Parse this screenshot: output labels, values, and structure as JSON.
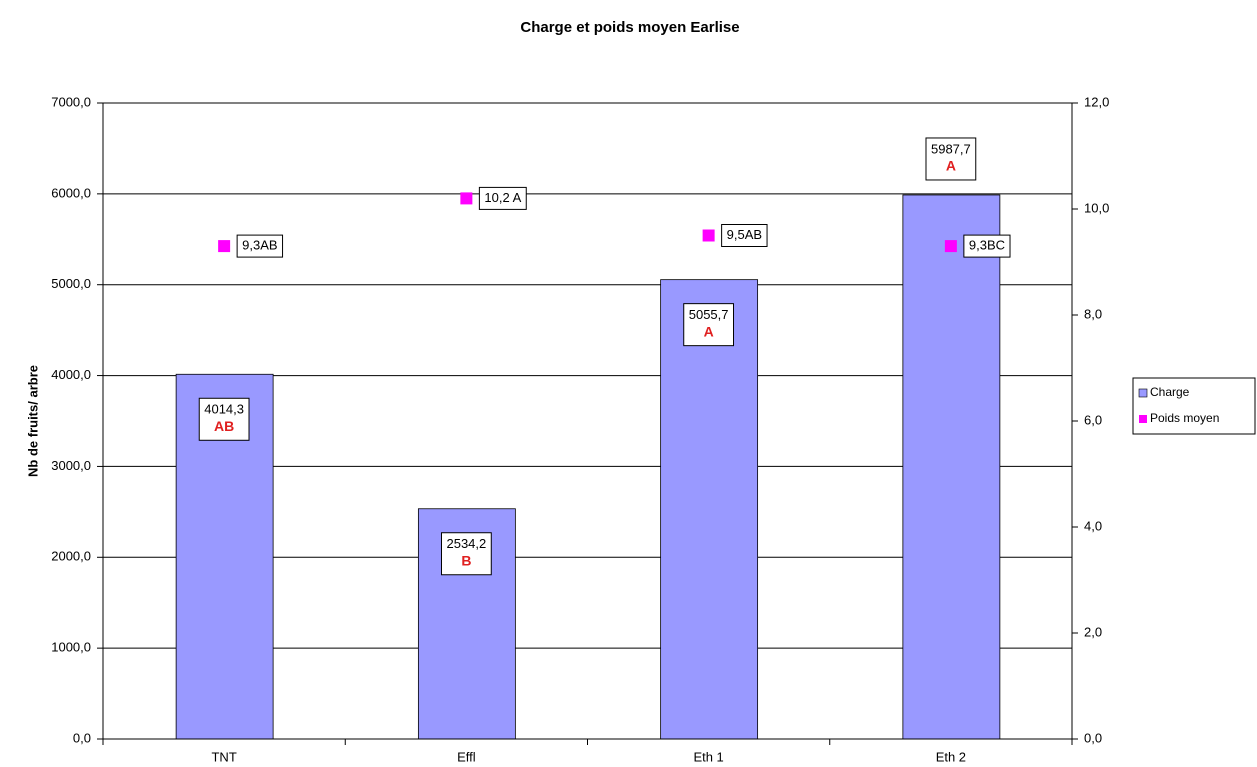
{
  "chart_data": {
    "type": "bar",
    "title": "Charge et poids moyen Earlise",
    "y_label": "Nb de fruits/ arbre",
    "categories": [
      "TNT",
      "Effl",
      "Eth 1",
      "Eth 2"
    ],
    "series": [
      {
        "name": "Charge",
        "type": "bar",
        "color": "#9999ff",
        "values": [
          4014.3,
          2534.2,
          5055.7,
          5987.7
        ],
        "value_labels": [
          "4014,3",
          "2534,2",
          "5055,7",
          "5987,7"
        ],
        "letters": [
          "AB",
          "B",
          "A",
          "A"
        ]
      },
      {
        "name": "Poids moyen",
        "type": "scatter",
        "axis": "y2",
        "color": "#ff00ff",
        "values": [
          9.3,
          10.2,
          9.5,
          9.3
        ],
        "value_labels": [
          "9,3AB",
          "10,2 A",
          "9,5AB",
          "9,3BC"
        ]
      }
    ],
    "ylim": [
      0,
      7000
    ],
    "yticks": [
      {
        "value": 0,
        "label": "0,0"
      },
      {
        "value": 1000,
        "label": "1000,0"
      },
      {
        "value": 2000,
        "label": "2000,0"
      },
      {
        "value": 3000,
        "label": "3000,0"
      },
      {
        "value": 4000,
        "label": "4000,0"
      },
      {
        "value": 5000,
        "label": "5000,0"
      },
      {
        "value": 6000,
        "label": "6000,0"
      },
      {
        "value": 7000,
        "label": "7000,0"
      }
    ],
    "y2lim": [
      0,
      12
    ],
    "y2ticks": [
      {
        "value": 0,
        "label": "0,0"
      },
      {
        "value": 2,
        "label": "2,0"
      },
      {
        "value": 4,
        "label": "4,0"
      },
      {
        "value": 6,
        "label": "6,0"
      },
      {
        "value": 8,
        "label": "8,0"
      },
      {
        "value": 10,
        "label": "10,0"
      },
      {
        "value": 12,
        "label": "12,0"
      }
    ],
    "grid": true,
    "legend": "right"
  }
}
